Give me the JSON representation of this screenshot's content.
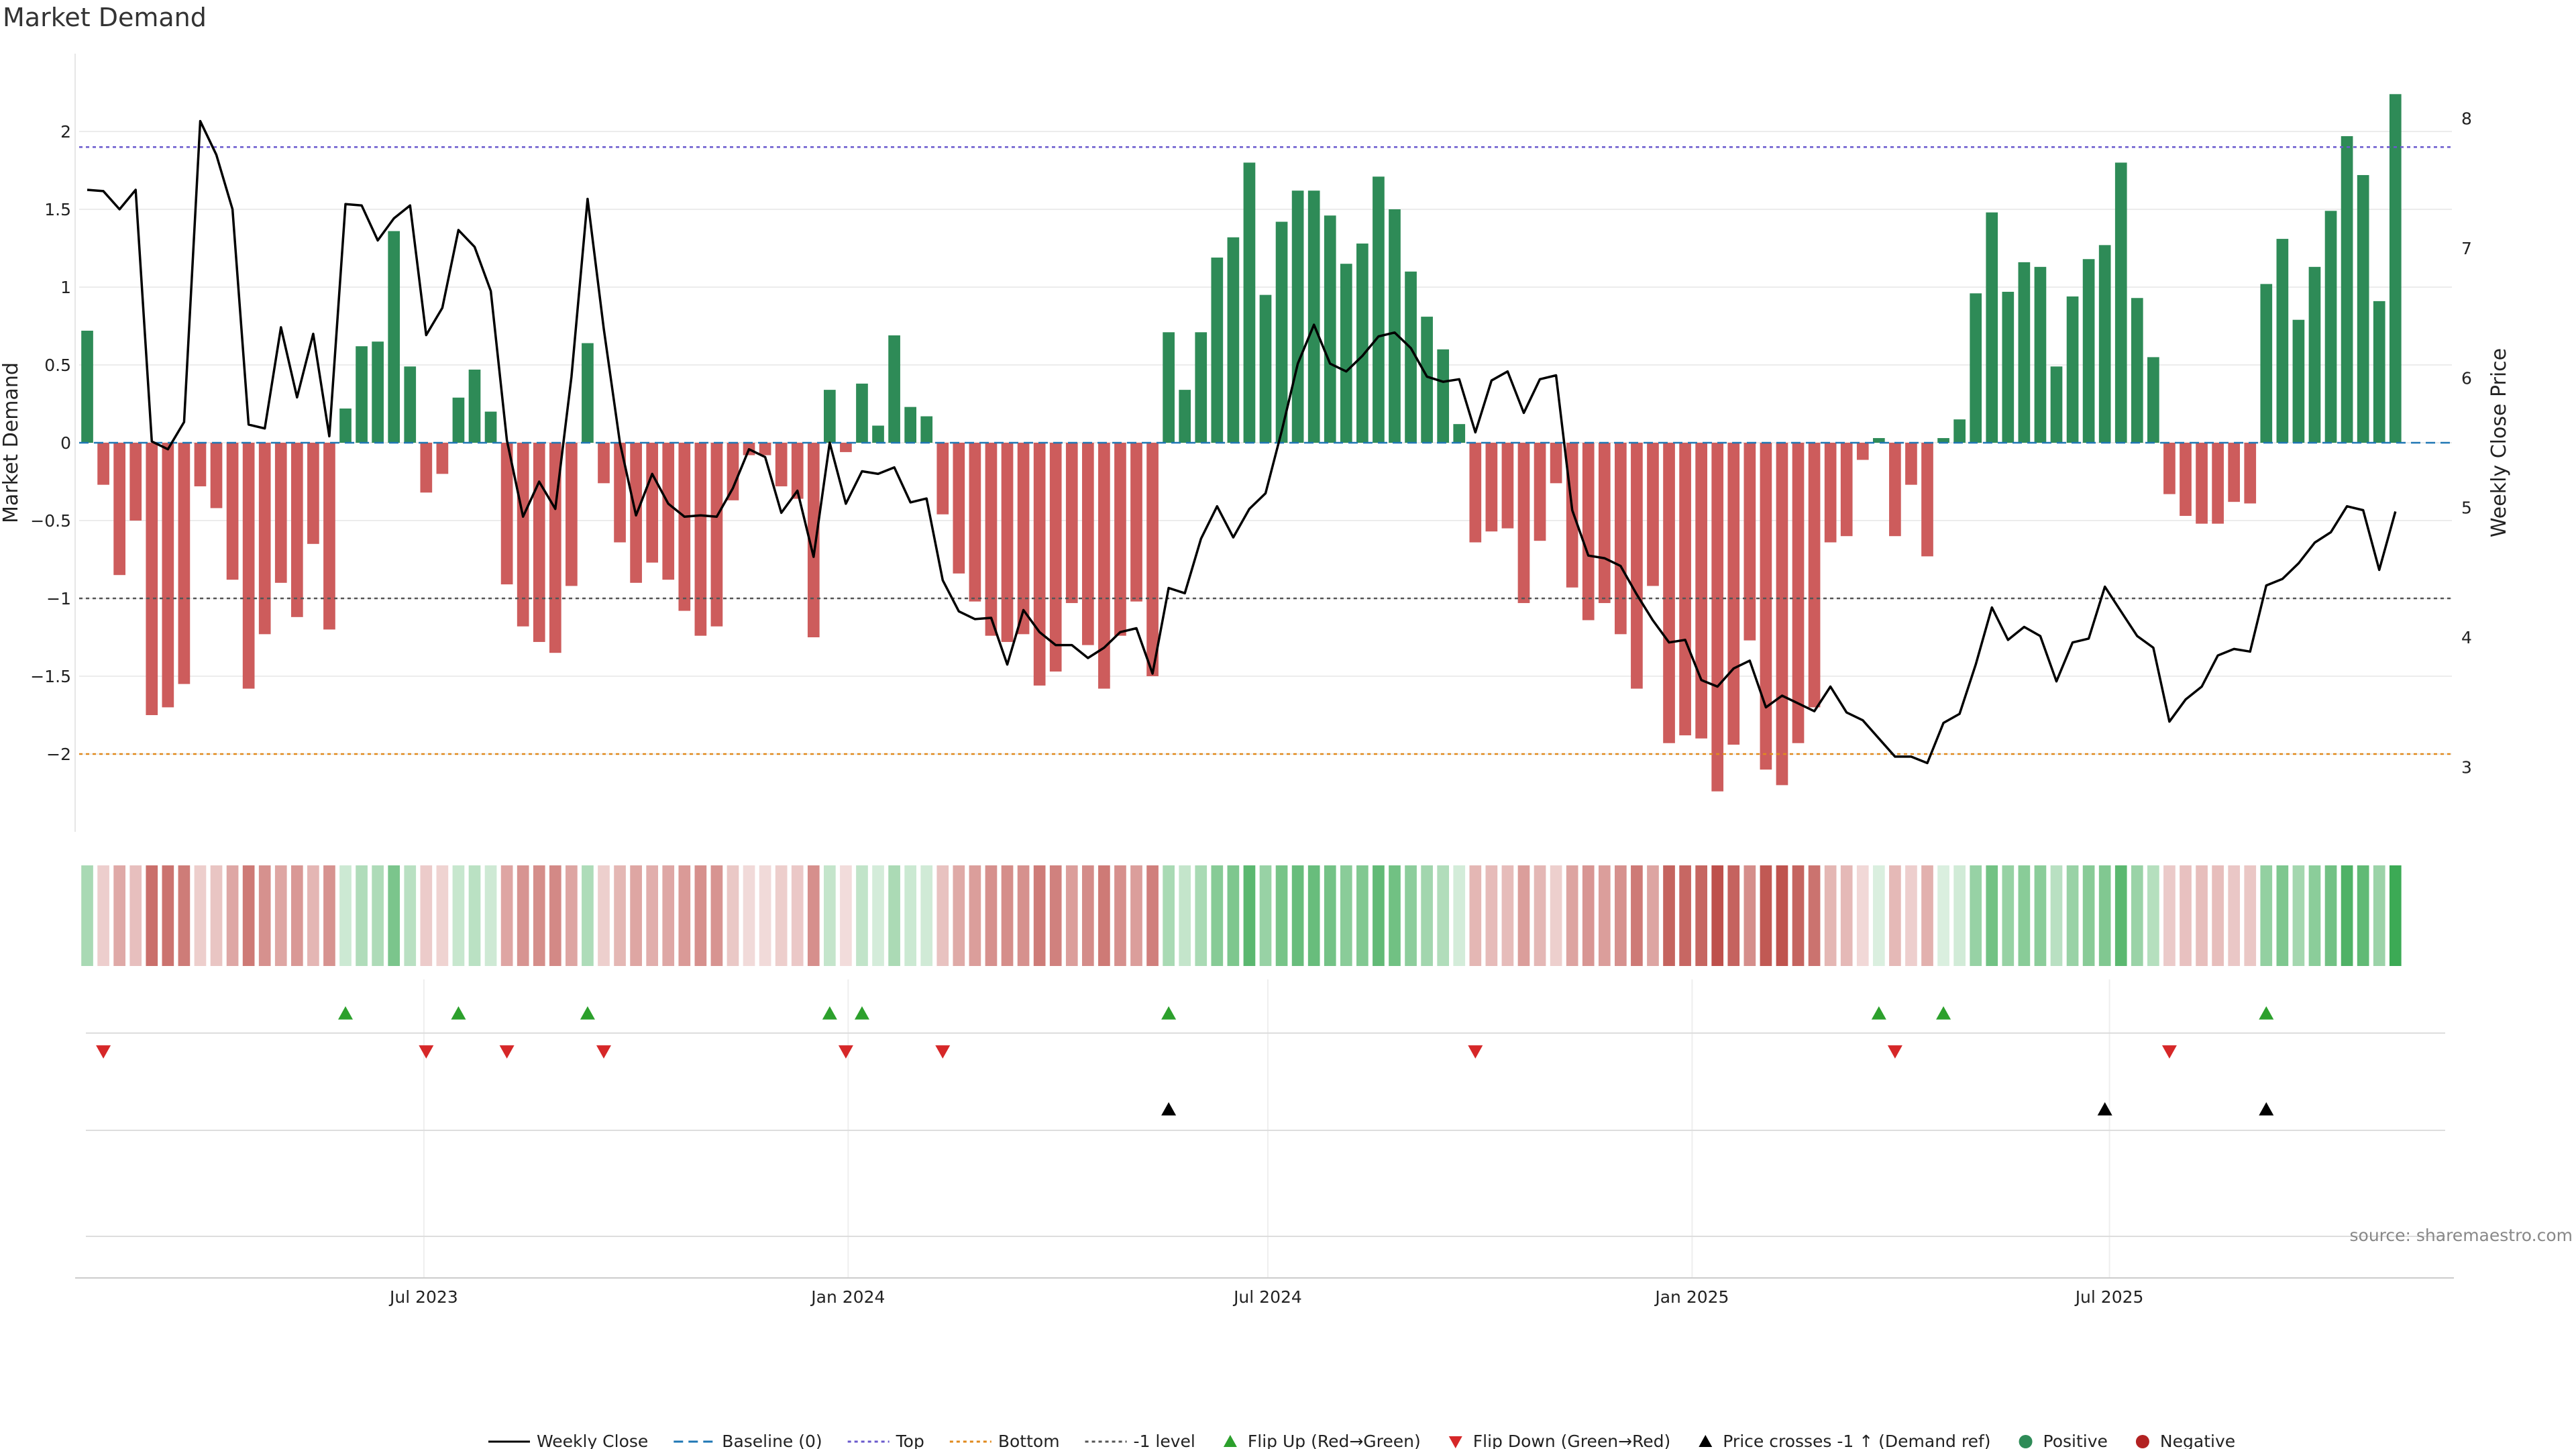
{
  "title": "Market Demand",
  "source": "source: sharemaestro.com",
  "chart_data": {
    "type": "bar",
    "title": "Market Demand",
    "ylabel": "Market Demand",
    "y2label": "Weekly Close Price",
    "ylim": [
      -2.5,
      2.5
    ],
    "y2lim": [
      2.5,
      8.5
    ],
    "yticks": [
      -2,
      -1.5,
      -1,
      -0.5,
      0,
      0.5,
      1,
      1.5,
      2
    ],
    "ytick_labels": [
      "−2",
      "−1.5",
      "−1",
      "−0.5",
      "0",
      "0.5",
      "1",
      "1.5",
      "2"
    ],
    "y2ticks": [
      3,
      4,
      5,
      6,
      7,
      8
    ],
    "x_start": "2023-02-05",
    "x_end": "2025-11-23",
    "x_step_days": 7,
    "xticks": [
      {
        "date": "2023-07-01",
        "label": "Jul 2023"
      },
      {
        "date": "2024-01-01",
        "label": "Jan 2024"
      },
      {
        "date": "2024-07-01",
        "label": "Jul 2024"
      },
      {
        "date": "2025-01-01",
        "label": "Jan 2025"
      },
      {
        "date": "2025-07-01",
        "label": "Jul 2025"
      }
    ],
    "reference_lines": [
      {
        "name": "Baseline (0)",
        "y": 0,
        "color": "#1f77b4",
        "style": "dashed"
      },
      {
        "name": "Top",
        "y": 1.9,
        "color": "#6a5acd",
        "style": "dotted"
      },
      {
        "name": "Bottom",
        "y": -2.0,
        "color": "#e08a1e",
        "style": "dotted"
      },
      {
        "name": "-1 level",
        "y": -1.0,
        "color": "#555555",
        "style": "dotted"
      }
    ],
    "demand": [
      0.72,
      -0.27,
      -0.85,
      -0.5,
      -1.75,
      -1.7,
      -1.55,
      -0.28,
      -0.42,
      -0.88,
      -1.58,
      -1.23,
      -0.9,
      -1.12,
      -0.65,
      -1.2,
      0.22,
      0.62,
      0.65,
      1.36,
      0.49,
      -0.32,
      -0.2,
      0.29,
      0.47,
      0.2,
      -0.91,
      -1.18,
      -1.28,
      -1.35,
      -0.92,
      0.64,
      -0.26,
      -0.64,
      -0.9,
      -0.77,
      -0.88,
      -1.08,
      -1.24,
      -1.18,
      -0.37,
      -0.08,
      -0.08,
      -0.28,
      -0.36,
      -1.25,
      0.34,
      -0.06,
      0.38,
      0.11,
      0.69,
      0.23,
      0.17,
      -0.46,
      -0.84,
      -1.02,
      -1.24,
      -1.28,
      -1.23,
      -1.56,
      -1.47,
      -1.03,
      -1.3,
      -1.58,
      -1.24,
      -1.02,
      -1.5,
      0.71,
      0.34,
      0.71,
      1.19,
      1.32,
      1.8,
      0.95,
      1.42,
      1.62,
      1.62,
      1.46,
      1.15,
      1.28,
      1.71,
      1.5,
      1.1,
      0.81,
      0.6,
      0.12,
      -0.64,
      -0.57,
      -0.55,
      -1.03,
      -0.63,
      -0.26,
      -0.93,
      -1.14,
      -1.03,
      -1.23,
      -1.58,
      -0.92,
      -1.93,
      -1.88,
      -1.9,
      -2.24,
      -1.94,
      -1.27,
      -2.1,
      -2.2,
      -1.93,
      -1.7,
      -0.64,
      -0.6,
      -0.11,
      0.03,
      -0.6,
      -0.27,
      -0.73,
      0.03,
      0.15,
      0.96,
      1.48,
      0.97,
      1.16,
      1.13,
      0.49,
      0.94,
      1.18,
      1.27,
      1.8,
      0.93,
      0.55,
      -0.33,
      -0.47,
      -0.52,
      -0.52,
      -0.38,
      -0.39,
      1.02,
      1.31,
      0.79,
      1.13,
      1.49,
      1.97,
      1.72,
      0.91,
      2.24
    ],
    "weekly_close": [
      7.45,
      7.44,
      7.3,
      7.45,
      5.51,
      5.45,
      5.66,
      7.98,
      7.72,
      7.3,
      5.64,
      5.61,
      6.39,
      5.85,
      6.34,
      5.55,
      7.34,
      7.33,
      7.06,
      7.23,
      7.33,
      6.33,
      6.54,
      7.14,
      7.01,
      6.67,
      5.52,
      4.93,
      5.2,
      4.99,
      6.01,
      7.38,
      6.38,
      5.5,
      4.94,
      5.26,
      5.03,
      4.93,
      4.94,
      4.93,
      5.15,
      5.45,
      5.39,
      4.96,
      5.13,
      4.62,
      5.5,
      5.03,
      5.28,
      5.26,
      5.31,
      5.04,
      5.07,
      4.44,
      4.2,
      4.14,
      4.15,
      3.79,
      4.21,
      4.04,
      3.94,
      3.94,
      3.84,
      3.92,
      4.04,
      4.07,
      3.72,
      4.38,
      4.34,
      4.76,
      5.01,
      4.77,
      4.99,
      5.11,
      5.59,
      6.11,
      6.41,
      6.11,
      6.05,
      6.17,
      6.32,
      6.35,
      6.23,
      6.01,
      5.97,
      5.99,
      5.58,
      5.98,
      6.05,
      5.73,
      5.99,
      6.02,
      4.98,
      4.63,
      4.61,
      4.55,
      4.33,
      4.13,
      3.96,
      3.98,
      3.67,
      3.62,
      3.76,
      3.82,
      3.46,
      3.55,
      3.49,
      3.43,
      3.62,
      3.42,
      3.36,
      3.22,
      3.08,
      3.08,
      3.03,
      3.34,
      3.41,
      3.79,
      4.23,
      3.98,
      4.08,
      4.01,
      3.66,
      3.96,
      3.99,
      4.39,
      4.2,
      4.01,
      3.92,
      3.35,
      3.52,
      3.62,
      3.86,
      3.91,
      3.89,
      4.4,
      4.45,
      4.57,
      4.73,
      4.81,
      5.01,
      4.98,
      4.52,
      4.97
    ],
    "flip_up_idx": [
      16,
      23,
      31,
      46,
      48,
      67,
      111,
      115,
      135
    ],
    "flip_down_idx": [
      1,
      21,
      26,
      32,
      47,
      53,
      86,
      112,
      129
    ],
    "price_cross_idx": [
      67,
      125,
      135
    ],
    "legend": [
      {
        "label": "Weekly Close",
        "kind": "line",
        "color": "#000000"
      },
      {
        "label": "Baseline (0)",
        "kind": "dashed",
        "color": "#1f77b4"
      },
      {
        "label": "Top",
        "kind": "dotted",
        "color": "#6a5acd"
      },
      {
        "label": "Bottom",
        "kind": "dotted",
        "color": "#e08a1e"
      },
      {
        "label": "-1 level",
        "kind": "dotted",
        "color": "#555555"
      },
      {
        "label": "Flip Up (Red→Green)",
        "kind": "tri-up",
        "color": "#2ca02c"
      },
      {
        "label": "Flip Down (Green→Red)",
        "kind": "tri-down",
        "color": "#d62728"
      },
      {
        "label": "Price crosses -1 ↑ (Demand ref)",
        "kind": "tri-up",
        "color": "#000000"
      },
      {
        "label": "Positive",
        "kind": "dot",
        "color": "#2e8b57"
      },
      {
        "label": "Negative",
        "kind": "dot",
        "color": "#b22222"
      }
    ],
    "colors": {
      "positive": "#2e8b57",
      "negative": "#cd5c5c",
      "price": "#000000"
    }
  }
}
